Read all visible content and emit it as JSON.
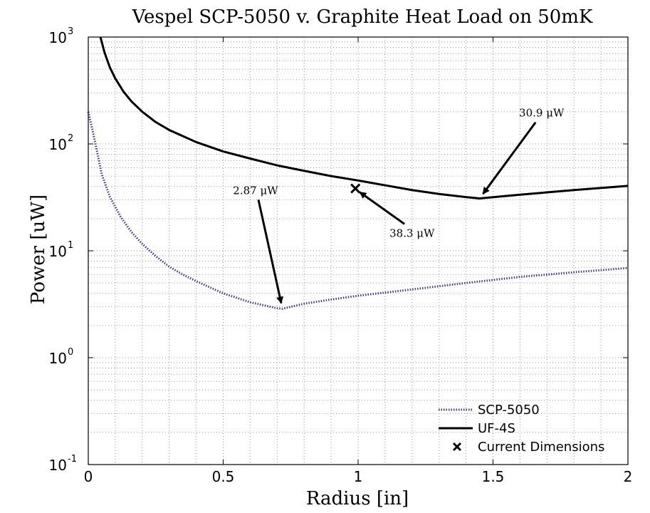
{
  "chart_data": {
    "type": "line",
    "title": "Vespel SCP-5050 v. Graphite Heat Load on 50mK",
    "xlabel": "Radius [in]",
    "ylabel": "Power [uW]",
    "xlim": [
      0,
      2
    ],
    "ylim": [
      0.1,
      1000
    ],
    "yscale": "log",
    "grid": true,
    "legend_position": "bottom-right",
    "x_ticks": [
      {
        "value": 0,
        "label": "0"
      },
      {
        "value": 0.5,
        "label": "0.5"
      },
      {
        "value": 1,
        "label": "1"
      },
      {
        "value": 1.5,
        "label": "1.5"
      },
      {
        "value": 2,
        "label": "2"
      }
    ],
    "y_ticks": [
      {
        "value": 0.1,
        "base": "10",
        "exp": "-1"
      },
      {
        "value": 1,
        "base": "10",
        "exp": "0"
      },
      {
        "value": 10,
        "base": "10",
        "exp": "1"
      },
      {
        "value": 100,
        "base": "10",
        "exp": "2"
      },
      {
        "value": 1000,
        "base": "10",
        "exp": "3"
      }
    ],
    "series": [
      {
        "name": "SCP-5050",
        "style": "dotted",
        "color": "#3d3d8f",
        "x": [
          0,
          0.02,
          0.05,
          0.08,
          0.12,
          0.16,
          0.2,
          0.25,
          0.3,
          0.35,
          0.4,
          0.5,
          0.6,
          0.7,
          0.72,
          0.8,
          0.9,
          1.0,
          1.2,
          1.4,
          1.6,
          1.8,
          2.0
        ],
        "y": [
          200,
          120,
          52,
          32,
          20.8,
          15,
          11.6,
          8.9,
          7.1,
          6.0,
          5.2,
          4.0,
          3.3,
          2.9,
          2.87,
          3.2,
          3.5,
          3.8,
          4.35,
          5.0,
          5.7,
          6.3,
          6.9
        ]
      },
      {
        "name": "UF-4S",
        "style": "solid",
        "color": "#000000",
        "x": [
          0.045,
          0.06,
          0.08,
          0.1,
          0.13,
          0.16,
          0.2,
          0.25,
          0.3,
          0.4,
          0.5,
          0.6,
          0.7,
          0.8,
          0.9,
          1.0,
          1.1,
          1.2,
          1.3,
          1.4,
          1.45,
          1.6,
          1.8,
          2.0
        ],
        "y": [
          1000,
          720,
          520,
          410,
          310,
          250,
          200,
          160,
          135,
          104,
          85,
          73,
          63,
          56,
          50,
          45.5,
          41,
          37,
          34,
          31.8,
          30.9,
          33.5,
          37,
          40.5
        ]
      }
    ],
    "markers": [
      {
        "name": "Current Dimensions",
        "symbol": "x",
        "x": 0.99,
        "y": 38.3
      }
    ],
    "annotations": [
      {
        "text": "30.9 μW",
        "target_x": 1.45,
        "target_y": 30.9,
        "text_x": 1.68,
        "text_y": 180
      },
      {
        "text": "38.3 μW",
        "target_x": 0.99,
        "target_y": 38.3,
        "text_x": 1.2,
        "text_y": 13.5
      },
      {
        "text": "2.87 μW",
        "target_x": 0.72,
        "target_y": 2.87,
        "text_x": 0.62,
        "text_y": 34
      }
    ],
    "legend": [
      {
        "label": "SCP-5050",
        "style": "dotted",
        "color": "#3d3d8f"
      },
      {
        "label": "UF-4S",
        "style": "solid",
        "color": "#000000"
      },
      {
        "label": "Current Dimensions",
        "style": "marker-x",
        "color": "#000000"
      }
    ]
  }
}
